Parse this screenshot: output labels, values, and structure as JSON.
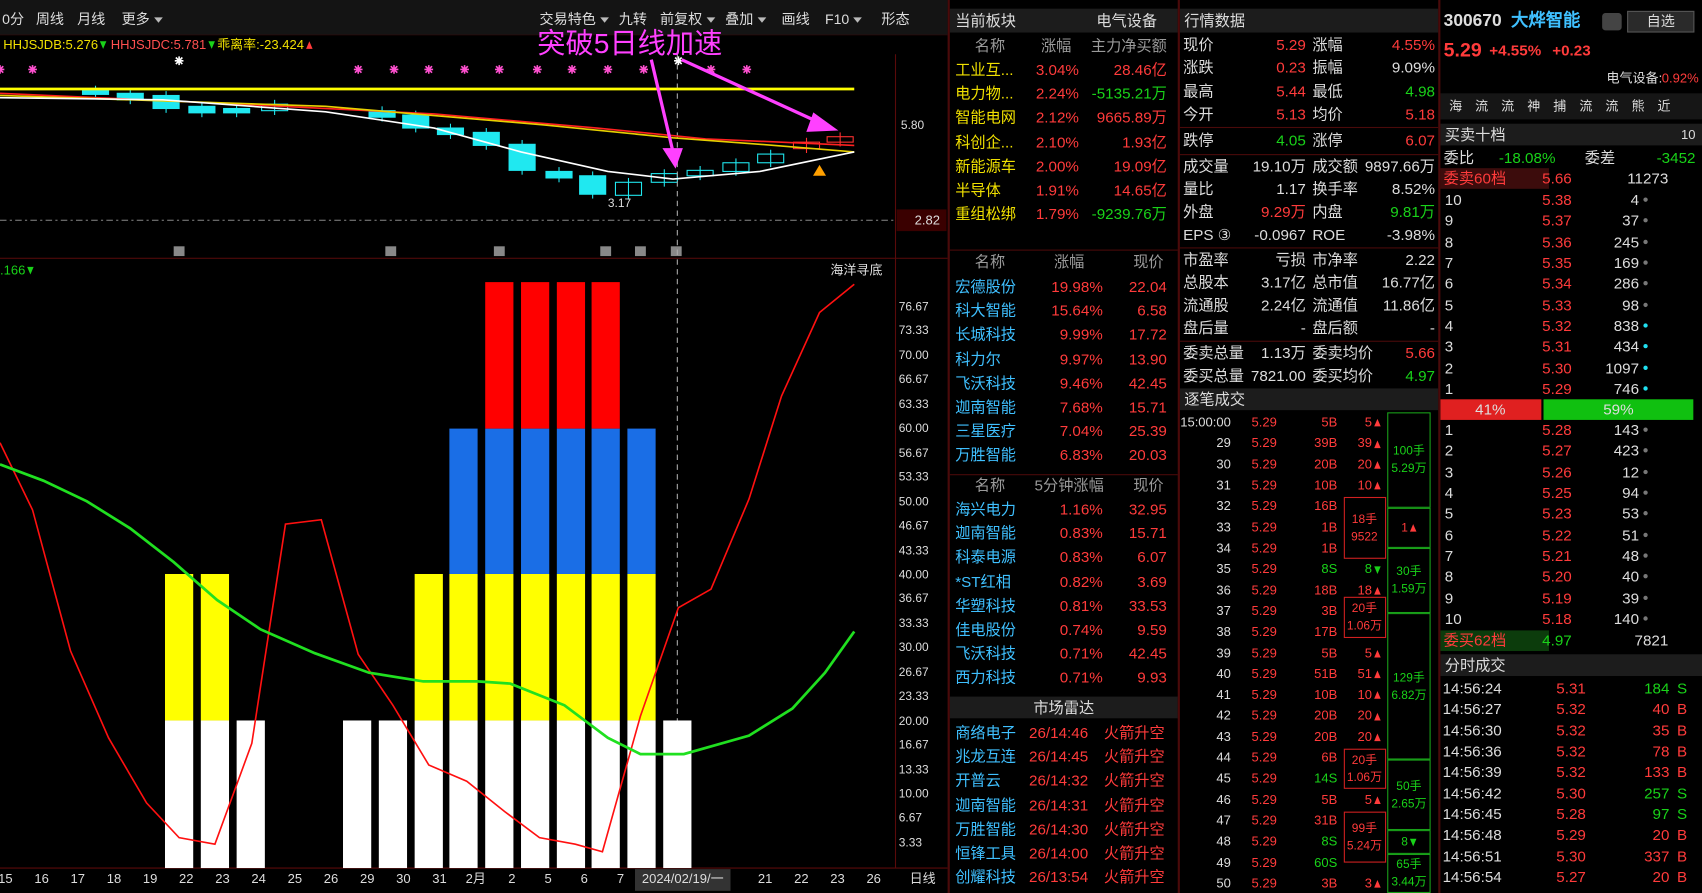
{
  "toolbar": {
    "tabs": [
      "0分",
      "周线",
      "月线",
      "更多"
    ],
    "tools": [
      "交易特色",
      "九转",
      "前复权",
      "叠加",
      "画线",
      "F10",
      "形态"
    ]
  },
  "kline": {
    "indicators": [
      "HHJSJDB:5.276",
      "HHJSJDC:5.781",
      "乖离率:-23.424"
    ],
    "annotation": "突破5日线加速",
    "price_label": "5.80",
    "low_label": "3.17",
    "price_box": "2.82",
    "sub_value": ".166",
    "sub_name": "海洋寻底",
    "sub_axis": [
      "76.67",
      "73.33",
      "70.00",
      "66.67",
      "63.33",
      "60.00",
      "56.67",
      "53.33",
      "50.00",
      "46.67",
      "43.33",
      "40.00",
      "36.67",
      "33.33",
      "30.00",
      "26.67",
      "23.33",
      "20.00",
      "16.67",
      "13.33",
      "10.00",
      "6.67",
      "3.33"
    ],
    "dates": [
      "15",
      "16",
      "17",
      "18",
      "19",
      "22",
      "23",
      "24",
      "25",
      "26",
      "29",
      "30",
      "31",
      "2月",
      "2",
      "5",
      "6",
      "7",
      "2024/02/19/一",
      "21",
      "22",
      "23",
      "26"
    ],
    "period": "日线"
  },
  "board": {
    "title": "当前板块",
    "sector": "电气设备",
    "sectors": {
      "header": [
        "名称",
        "涨幅",
        "主力净买额"
      ],
      "rows": [
        [
          "工业互...",
          "3.04%",
          "28.46亿"
        ],
        [
          "电力物...",
          "2.24%",
          "-5135.21万"
        ],
        [
          "智能电网",
          "2.12%",
          "9665.89万"
        ],
        [
          "科创企...",
          "2.10%",
          "1.93亿"
        ],
        [
          "新能源车",
          "2.00%",
          "19.09亿"
        ],
        [
          "半导体",
          "1.91%",
          "14.65亿"
        ],
        [
          "重组松绑",
          "1.79%",
          "-9239.76万"
        ]
      ]
    },
    "leaders": {
      "header": [
        "名称",
        "涨幅",
        "现价"
      ],
      "rows": [
        [
          "宏德股份",
          "19.98%",
          "22.04"
        ],
        [
          "科大智能",
          "15.64%",
          "6.58"
        ],
        [
          "长城科技",
          "9.99%",
          "17.72"
        ],
        [
          "科力尔",
          "9.97%",
          "13.90"
        ],
        [
          "飞沃科技",
          "9.46%",
          "42.45"
        ],
        [
          "迦南智能",
          "7.68%",
          "15.71"
        ],
        [
          "三星医疗",
          "7.04%",
          "25.39"
        ],
        [
          "万胜智能",
          "6.83%",
          "20.03"
        ]
      ]
    },
    "movers": {
      "header": [
        "名称",
        "5分钟涨幅",
        "现价"
      ],
      "rows": [
        [
          "海兴电力",
          "1.16%",
          "32.95"
        ],
        [
          "迦南智能",
          "0.83%",
          "15.71"
        ],
        [
          "科泰电源",
          "0.83%",
          "6.07"
        ],
        [
          "*ST红相",
          "0.82%",
          "3.69"
        ],
        [
          "华塑科技",
          "0.81%",
          "33.53"
        ],
        [
          "佳电股份",
          "0.74%",
          "9.59"
        ],
        [
          "飞沃科技",
          "0.71%",
          "42.45"
        ],
        [
          "西力科技",
          "0.71%",
          "9.93"
        ]
      ]
    },
    "radar": {
      "title": "市场雷达",
      "rows": [
        [
          "商络电子",
          "26/14:46",
          "火箭升空"
        ],
        [
          "兆龙互连",
          "26/14:45",
          "火箭升空"
        ],
        [
          "开普云",
          "26/14:32",
          "火箭升空"
        ],
        [
          "迦南智能",
          "26/14:31",
          "火箭升空"
        ],
        [
          "万胜智能",
          "26/14:30",
          "火箭升空"
        ],
        [
          "恒锋工具",
          "26/14:00",
          "火箭升空"
        ],
        [
          "创耀科技",
          "26/13:54",
          "火箭升空"
        ]
      ]
    }
  },
  "quote": {
    "title": "行情数据",
    "rows": [
      [
        "现价",
        "5.29",
        "涨幅",
        "4.55%"
      ],
      [
        "涨跌",
        "0.23",
        "振幅",
        "9.09%"
      ],
      [
        "最高",
        "5.44",
        "最低",
        "4.98"
      ],
      [
        "今开",
        "5.13",
        "均价",
        "5.18"
      ],
      [
        "跌停",
        "4.05",
        "涨停",
        "6.07"
      ],
      [
        "成交量",
        "19.10万",
        "成交额",
        "9897.66万"
      ],
      [
        "量比",
        "1.17",
        "换手率",
        "8.52%"
      ],
      [
        "外盘",
        "9.29万",
        "内盘",
        "9.81万"
      ],
      [
        "EPS ③",
        "-0.0967",
        "ROE",
        "-3.98%"
      ],
      [
        "市盈率",
        "亏损",
        "市净率",
        "2.22"
      ],
      [
        "总股本",
        "3.17亿",
        "总市值",
        "16.77亿"
      ],
      [
        "流通股",
        "2.24亿",
        "流通值",
        "11.86亿"
      ],
      [
        "盘后量",
        "-",
        "盘后额",
        "-"
      ],
      [
        "委卖总量",
        "1.13万",
        "委卖均价",
        "5.66"
      ],
      [
        "委买总量",
        "7821.00",
        "委买均价",
        "4.97"
      ]
    ]
  },
  "ticks": {
    "title": "逐笔成交",
    "rows": [
      [
        "15:00:00",
        "5.29",
        "5B",
        "5"
      ],
      [
        "29",
        "5.29",
        "39B",
        "39"
      ],
      [
        "30",
        "5.29",
        "20B",
        "20"
      ],
      [
        "31",
        "5.29",
        "10B",
        "10"
      ],
      [
        "32",
        "5.29",
        "16B",
        null
      ],
      [
        "33",
        "5.29",
        "1B",
        null
      ],
      [
        "34",
        "5.29",
        "1B",
        null
      ],
      [
        "35",
        "5.29",
        "8S",
        "8"
      ],
      [
        "36",
        "5.29",
        "18B",
        "18"
      ],
      [
        "37",
        "5.29",
        "3B",
        null
      ],
      [
        "38",
        "5.29",
        "17B",
        null
      ],
      [
        "39",
        "5.29",
        "5B",
        "5"
      ],
      [
        "40",
        "5.29",
        "51B",
        "51"
      ],
      [
        "41",
        "5.29",
        "10B",
        "10"
      ],
      [
        "42",
        "5.29",
        "20B",
        "20"
      ],
      [
        "43",
        "5.29",
        "20B",
        "20"
      ],
      [
        "44",
        "5.29",
        "6B",
        null
      ],
      [
        "45",
        "5.29",
        "14S",
        null
      ],
      [
        "46",
        "5.29",
        "5B",
        "5"
      ],
      [
        "47",
        "5.29",
        "31B",
        null
      ],
      [
        "48",
        "5.29",
        "8S",
        null
      ],
      [
        "49",
        "5.29",
        "60S",
        null
      ],
      [
        "50",
        "5.29",
        "3B",
        "3"
      ]
    ],
    "groups": [
      [
        "18手",
        "9522"
      ],
      [
        "20手",
        "1.06万"
      ],
      [
        "20手",
        "1.06万"
      ],
      [
        "99手",
        "5.24万"
      ]
    ],
    "sums": [
      [
        "100手",
        "5.29万"
      ],
      [
        "1"
      ],
      [
        "30手",
        "1.59万"
      ],
      [
        "129手",
        "6.82万"
      ],
      [
        "50手",
        "2.65万"
      ],
      [
        "8"
      ],
      [
        "65手",
        "3.44万"
      ]
    ]
  },
  "book": {
    "code": "300670",
    "name": "大烨智能",
    "watch": "自选",
    "price": "5.29",
    "pct": "+4.55%",
    "chg": "+0.23",
    "sector_label": "电气设备:",
    "sector_pct": "0.92%",
    "tools": [
      "海",
      "流",
      "流",
      "神",
      "捕",
      "流",
      "流",
      "熊",
      "近"
    ],
    "title": "买卖十档",
    "depth": "10",
    "ratio": [
      "委比",
      "-18.08%",
      "委差",
      "-3452"
    ],
    "ask_total": [
      "委卖60档",
      "5.66",
      "11273"
    ],
    "asks": [
      [
        "10",
        "5.38",
        "4"
      ],
      [
        "9",
        "5.37",
        "37"
      ],
      [
        "8",
        "5.36",
        "245"
      ],
      [
        "7",
        "5.35",
        "169"
      ],
      [
        "6",
        "5.34",
        "286"
      ],
      [
        "5",
        "5.33",
        "98"
      ],
      [
        "4",
        "5.32",
        "838"
      ],
      [
        "3",
        "5.31",
        "434"
      ],
      [
        "2",
        "5.30",
        "1097"
      ],
      [
        "1",
        "5.29",
        "746"
      ]
    ],
    "split": [
      "41%",
      "59%"
    ],
    "bids": [
      [
        "1",
        "5.28",
        "143"
      ],
      [
        "2",
        "5.27",
        "423"
      ],
      [
        "3",
        "5.26",
        "12"
      ],
      [
        "4",
        "5.25",
        "94"
      ],
      [
        "5",
        "5.23",
        "53"
      ],
      [
        "6",
        "5.22",
        "51"
      ],
      [
        "7",
        "5.21",
        "48"
      ],
      [
        "8",
        "5.20",
        "40"
      ],
      [
        "9",
        "5.19",
        "39"
      ],
      [
        "10",
        "5.18",
        "140"
      ]
    ],
    "bid_total": [
      "委买62档",
      "4.97",
      "7821"
    ]
  },
  "trades": {
    "title": "分时成交",
    "rows": [
      [
        "14:56:24",
        "5.31",
        "184",
        "S"
      ],
      [
        "14:56:27",
        "5.32",
        "40",
        "B"
      ],
      [
        "14:56:30",
        "5.32",
        "35",
        "B"
      ],
      [
        "14:56:36",
        "5.32",
        "78",
        "B"
      ],
      [
        "14:56:39",
        "5.32",
        "133",
        "B"
      ],
      [
        "14:56:42",
        "5.30",
        "257",
        "S"
      ],
      [
        "14:56:45",
        "5.28",
        "97",
        "S"
      ],
      [
        "14:56:48",
        "5.29",
        "20",
        "B"
      ],
      [
        "14:56:51",
        "5.30",
        "337",
        "B"
      ],
      [
        "14:56:54",
        "5.27",
        "20",
        "B"
      ]
    ]
  }
}
